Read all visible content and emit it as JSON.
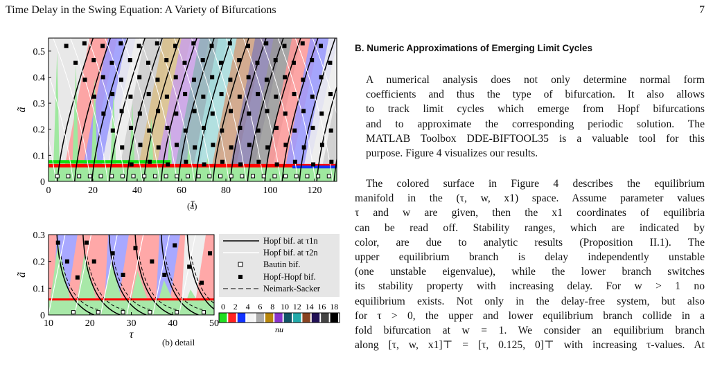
{
  "header": {
    "title": "Time Delay in the Swing Equation: A Variety of Bifurcations",
    "page": "7"
  },
  "fig_a": {
    "caption": "(a)",
    "xlabel": "τ",
    "ylabel": "ã",
    "xticks": [
      "0",
      "20",
      "40",
      "60",
      "80",
      "100",
      "120"
    ],
    "yticks": [
      "0",
      "0.1",
      "0.2",
      "0.3",
      "0.4",
      "0.5"
    ]
  },
  "fig_b": {
    "caption": "(b) detail",
    "xlabel": "τ",
    "ylabel": "ã",
    "xticks": [
      "10",
      "20",
      "30",
      "40",
      "50"
    ],
    "yticks": [
      "0",
      "0.1",
      "0.2",
      "0.3"
    ]
  },
  "legend": {
    "hopf1": "Hopf bif. at τ1n",
    "hopf2": "Hopf bif. at τ2n",
    "bautin": "Bautin bif.",
    "hh": "Hopf-Hopf bif.",
    "ns": "Neimark-Sacker",
    "colorbar_ticks": [
      "0",
      "2",
      "4",
      "6",
      "8",
      "10",
      "12",
      "14",
      "16",
      "18"
    ],
    "colorbar_label": "nu",
    "colors": [
      "#22dd22",
      "#ff2222",
      "#1133ff",
      "#f4f4f4",
      "#aaaaaa",
      "#b8860b",
      "#8833cc",
      "#115566",
      "#22aaaa",
      "#884422",
      "#221155",
      "#444444",
      "#000000"
    ]
  },
  "chart_data": [
    {
      "type": "other",
      "title": "",
      "xlabel": "τ",
      "ylabel": "ã",
      "xlim": [
        0,
        130
      ],
      "ylim": [
        0,
        0.55
      ],
      "xticks": [
        0,
        20,
        40,
        60,
        80,
        100,
        120
      ],
      "yticks": [
        0,
        0.1,
        0.2,
        0.3,
        0.4,
        0.5
      ]
    },
    {
      "type": "other",
      "title": "",
      "xlabel": "τ",
      "ylabel": "ã",
      "xlim": [
        10,
        50
      ],
      "ylim": [
        0,
        0.3
      ],
      "xticks": [
        10,
        20,
        30,
        40,
        50
      ],
      "yticks": [
        0,
        0.1,
        0.2,
        0.3
      ]
    }
  ],
  "section": {
    "title": "B.   Numeric Approximations of Emerging Limit Cycles"
  },
  "para1": [
    "A numerical analysis does not only determine normal form",
    "coefficients and thus the type of bifurcation. It also allows",
    "to track limit cycles which emerge from Hopf bifurcations",
    "and to approximate the corresponding periodic solution. The",
    "MATLAB Toolbox DDE-BIFTOOL35 is a valuable tool for this",
    "purpose. Figure 4 visualizes our results."
  ],
  "para2": [
    "The colored surface in Figure 4 describes the equilibrium",
    "manifold in the (τ, w, x1) space. Assume parameter values",
    "τ and w are given, then the x1 coordinates of equilibria",
    "can be read off. Stability ranges, which are indicated by",
    "color, are due to analytic results (Proposition II.1). The",
    "upper equilibrium branch is delay independently unstable",
    "(one unstable eigenvalue), while the lower branch switches",
    "its stability property with increasing delay. For w > 1 no",
    "equilibrium exists. Not only in the delay-free system, but also",
    "for τ > 0, the upper and lower equilibrium branch collide in a",
    "fold bifurcation at w = 1. We consider an equilibrium branch",
    "along [τ, w, x1]⊤ = [τ, 0.125, 0]⊤ with increasing τ-values. At"
  ]
}
